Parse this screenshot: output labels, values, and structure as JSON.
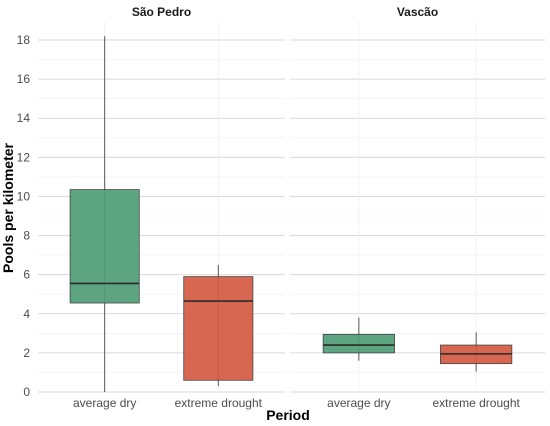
{
  "chart_data": {
    "type": "boxplot",
    "xlabel": "Period",
    "ylabel": "Pools per kilometer",
    "ylim": [
      0,
      19
    ],
    "yticks": [
      0,
      2,
      4,
      6,
      8,
      10,
      12,
      14,
      16,
      18
    ],
    "categories": [
      "average dry",
      "extreme drought"
    ],
    "colors": {
      "average dry": "#4f9d76",
      "extreme drought": "#d45a41"
    },
    "grid": true,
    "facets": [
      {
        "name": "São Pedro",
        "boxes": [
          {
            "category": "average dry",
            "min": 0.0,
            "q1": 4.55,
            "median": 5.55,
            "q3": 10.35,
            "max": 18.2
          },
          {
            "category": "extreme drought",
            "min": 0.3,
            "q1": 0.6,
            "median": 4.65,
            "q3": 5.9,
            "max": 6.5
          }
        ]
      },
      {
        "name": "Vascão",
        "boxes": [
          {
            "category": "average dry",
            "min": 1.6,
            "q1": 2.0,
            "median": 2.4,
            "q3": 2.95,
            "max": 3.8
          },
          {
            "category": "extreme drought",
            "min": 1.05,
            "q1": 1.45,
            "median": 1.95,
            "q3": 2.4,
            "max": 3.05
          }
        ]
      }
    ]
  }
}
